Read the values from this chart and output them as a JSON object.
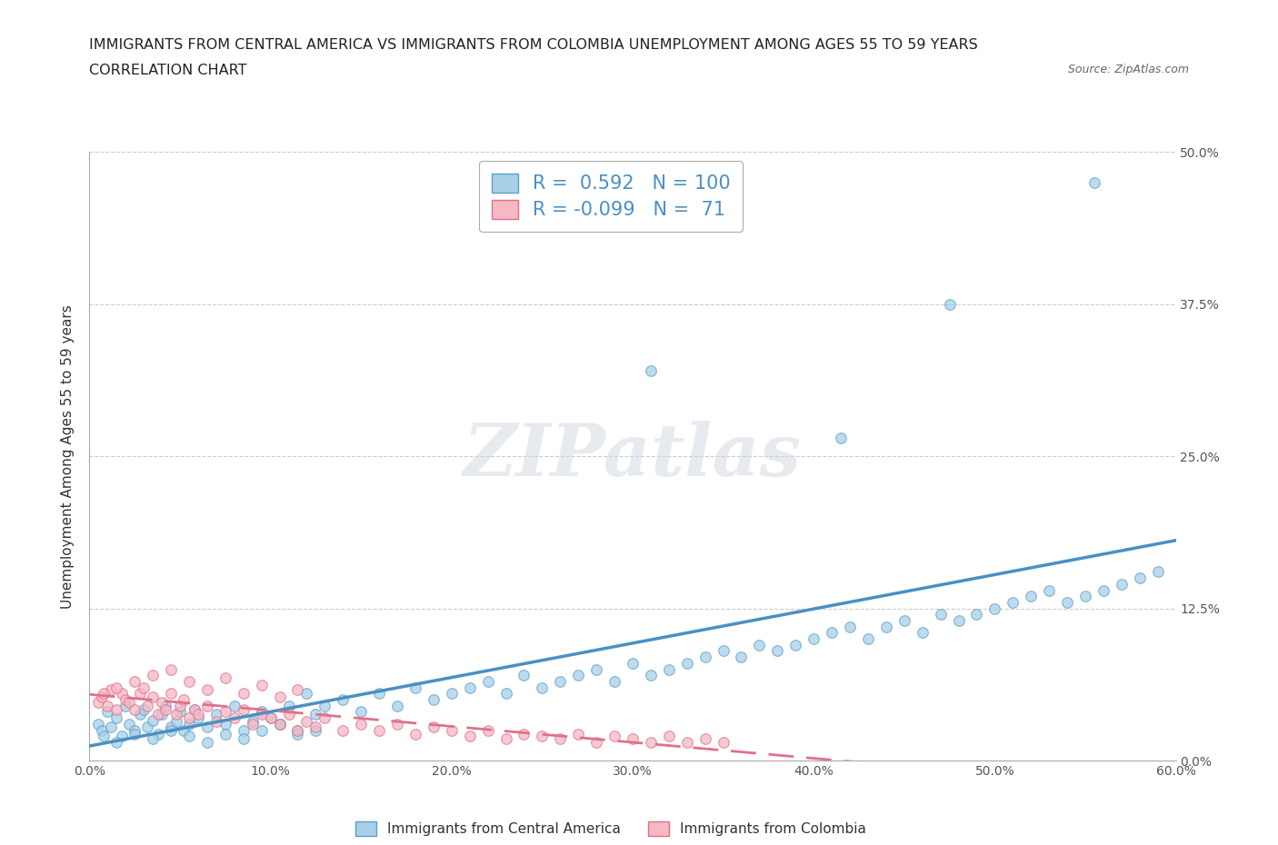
{
  "title_line1": "IMMIGRANTS FROM CENTRAL AMERICA VS IMMIGRANTS FROM COLOMBIA UNEMPLOYMENT AMONG AGES 55 TO 59 YEARS",
  "title_line2": "CORRELATION CHART",
  "source_text": "Source: ZipAtlas.com",
  "ylabel": "Unemployment Among Ages 55 to 59 years",
  "xlim": [
    0.0,
    0.6
  ],
  "ylim": [
    0.0,
    0.5
  ],
  "xticks": [
    0.0,
    0.1,
    0.2,
    0.3,
    0.4,
    0.5,
    0.6
  ],
  "yticks": [
    0.0,
    0.125,
    0.25,
    0.375,
    0.5
  ],
  "ytick_labels_right": [
    "0.0%",
    "12.5%",
    "25.0%",
    "37.5%",
    "50.0%"
  ],
  "xtick_labels": [
    "0.0%",
    "10.0%",
    "20.0%",
    "30.0%",
    "40.0%",
    "50.0%",
    "60.0%"
  ],
  "color_blue": "#a8d0e8",
  "color_pink": "#f5b8c4",
  "edge_blue": "#5b9ec9",
  "edge_pink": "#e0708a",
  "line_blue": "#4a90c4",
  "line_pink": "#e0708a",
  "R_blue": 0.592,
  "N_blue": 100,
  "R_pink": -0.099,
  "N_pink": 71,
  "legend_label_blue": "Immigrants from Central America",
  "legend_label_pink": "Immigrants from Colombia",
  "watermark": "ZIPatlas",
  "background_color": "#ffffff",
  "grid_color": "#cccccc",
  "title_fontsize": 11.5,
  "axis_fontsize": 11,
  "tick_fontsize": 10,
  "blue_x": [
    0.005,
    0.007,
    0.01,
    0.012,
    0.015,
    0.018,
    0.02,
    0.022,
    0.025,
    0.028,
    0.03,
    0.032,
    0.035,
    0.038,
    0.04,
    0.042,
    0.045,
    0.048,
    0.05,
    0.052,
    0.055,
    0.058,
    0.06,
    0.065,
    0.07,
    0.075,
    0.08,
    0.085,
    0.09,
    0.095,
    0.1,
    0.105,
    0.11,
    0.115,
    0.12,
    0.125,
    0.13,
    0.14,
    0.15,
    0.16,
    0.17,
    0.18,
    0.19,
    0.2,
    0.21,
    0.22,
    0.23,
    0.24,
    0.25,
    0.26,
    0.27,
    0.28,
    0.29,
    0.3,
    0.31,
    0.32,
    0.33,
    0.34,
    0.35,
    0.36,
    0.37,
    0.38,
    0.39,
    0.4,
    0.41,
    0.42,
    0.43,
    0.44,
    0.45,
    0.46,
    0.47,
    0.48,
    0.49,
    0.5,
    0.51,
    0.52,
    0.53,
    0.54,
    0.55,
    0.56,
    0.57,
    0.58,
    0.59,
    0.008,
    0.015,
    0.025,
    0.035,
    0.045,
    0.055,
    0.065,
    0.075,
    0.085,
    0.095,
    0.105,
    0.115,
    0.125,
    0.555,
    0.475,
    0.415,
    0.31
  ],
  "blue_y": [
    0.03,
    0.025,
    0.04,
    0.028,
    0.035,
    0.02,
    0.045,
    0.03,
    0.025,
    0.038,
    0.042,
    0.028,
    0.033,
    0.022,
    0.038,
    0.045,
    0.028,
    0.032,
    0.04,
    0.025,
    0.03,
    0.042,
    0.035,
    0.028,
    0.038,
    0.03,
    0.045,
    0.025,
    0.032,
    0.04,
    0.035,
    0.03,
    0.045,
    0.025,
    0.055,
    0.038,
    0.045,
    0.05,
    0.04,
    0.055,
    0.045,
    0.06,
    0.05,
    0.055,
    0.06,
    0.065,
    0.055,
    0.07,
    0.06,
    0.065,
    0.07,
    0.075,
    0.065,
    0.08,
    0.07,
    0.075,
    0.08,
    0.085,
    0.09,
    0.085,
    0.095,
    0.09,
    0.095,
    0.1,
    0.105,
    0.11,
    0.1,
    0.11,
    0.115,
    0.105,
    0.12,
    0.115,
    0.12,
    0.125,
    0.13,
    0.135,
    0.14,
    0.13,
    0.135,
    0.14,
    0.145,
    0.15,
    0.155,
    0.02,
    0.015,
    0.022,
    0.018,
    0.025,
    0.02,
    0.015,
    0.022,
    0.018,
    0.025,
    0.03,
    0.022,
    0.025,
    0.475,
    0.375,
    0.265,
    0.32
  ],
  "pink_x": [
    0.005,
    0.007,
    0.01,
    0.012,
    0.015,
    0.018,
    0.02,
    0.022,
    0.025,
    0.028,
    0.03,
    0.032,
    0.035,
    0.038,
    0.04,
    0.042,
    0.045,
    0.048,
    0.05,
    0.052,
    0.055,
    0.058,
    0.06,
    0.065,
    0.07,
    0.075,
    0.08,
    0.085,
    0.09,
    0.095,
    0.1,
    0.105,
    0.11,
    0.115,
    0.12,
    0.125,
    0.13,
    0.14,
    0.15,
    0.16,
    0.17,
    0.18,
    0.19,
    0.2,
    0.21,
    0.22,
    0.23,
    0.24,
    0.25,
    0.26,
    0.27,
    0.28,
    0.29,
    0.3,
    0.31,
    0.32,
    0.33,
    0.34,
    0.35,
    0.008,
    0.015,
    0.025,
    0.035,
    0.045,
    0.055,
    0.065,
    0.075,
    0.085,
    0.095,
    0.105,
    0.115
  ],
  "pink_y": [
    0.048,
    0.052,
    0.045,
    0.058,
    0.042,
    0.055,
    0.05,
    0.048,
    0.042,
    0.055,
    0.06,
    0.045,
    0.052,
    0.038,
    0.048,
    0.042,
    0.055,
    0.038,
    0.045,
    0.05,
    0.035,
    0.042,
    0.038,
    0.045,
    0.032,
    0.04,
    0.035,
    0.042,
    0.03,
    0.038,
    0.035,
    0.03,
    0.038,
    0.025,
    0.032,
    0.028,
    0.035,
    0.025,
    0.03,
    0.025,
    0.03,
    0.022,
    0.028,
    0.025,
    0.02,
    0.025,
    0.018,
    0.022,
    0.02,
    0.018,
    0.022,
    0.015,
    0.02,
    0.018,
    0.015,
    0.02,
    0.015,
    0.018,
    0.015,
    0.055,
    0.06,
    0.065,
    0.07,
    0.075,
    0.065,
    0.058,
    0.068,
    0.055,
    0.062,
    0.052,
    0.058
  ]
}
